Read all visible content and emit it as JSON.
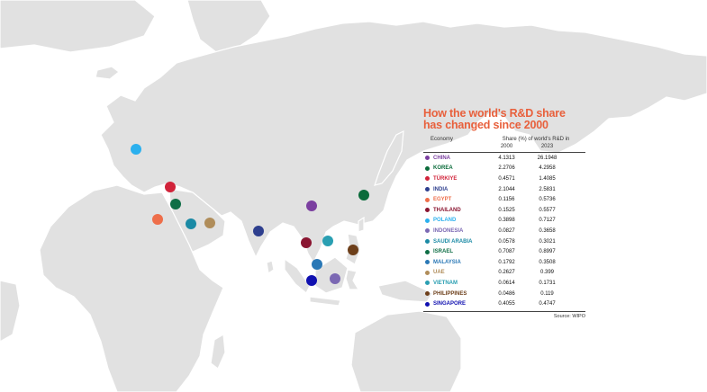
{
  "title": "How the world's R&D share has changed since 2000",
  "table": {
    "col_economy": "Economy",
    "col_share": "Share (%) of world's R&D in",
    "year_a": "2000",
    "year_b": "2023",
    "rows": [
      {
        "name": "CHINA",
        "v2000": "4.1313",
        "v2023": "26.1948",
        "color": "#7b3fa0"
      },
      {
        "name": "KOREA",
        "v2000": "2.2706",
        "v2023": "4.2958",
        "color": "#0a6b3a"
      },
      {
        "name": "TÜRKIYE",
        "v2000": "0.4571",
        "v2023": "1.4085",
        "color": "#d1233a"
      },
      {
        "name": "INDIA",
        "v2000": "2.1044",
        "v2023": "2.5831",
        "color": "#2e3f8e"
      },
      {
        "name": "EGYPT",
        "v2000": "0.1156",
        "v2023": "0.5736",
        "color": "#ee6e4a"
      },
      {
        "name": "THAILAND",
        "v2000": "0.1525",
        "v2023": "0.5577",
        "color": "#8a1531"
      },
      {
        "name": "POLAND",
        "v2000": "0.3898",
        "v2023": "0.7127",
        "color": "#2bb0ee"
      },
      {
        "name": "INDONESIA",
        "v2000": "0.0827",
        "v2023": "0.3658",
        "color": "#7b68b3"
      },
      {
        "name": "SAUDI ARABIA",
        "v2000": "0.0578",
        "v2023": "0.3021",
        "color": "#1b8aa5"
      },
      {
        "name": "ISRAEL",
        "v2000": "0.7087",
        "v2023": "0.8997",
        "color": "#0f6e46"
      },
      {
        "name": "MALAYSIA",
        "v2000": "0.1792",
        "v2023": "0.3508",
        "color": "#2a78b6"
      },
      {
        "name": "UAE",
        "v2000": "0.2627",
        "v2023": "0.399",
        "color": "#b08d5a"
      },
      {
        "name": "VIETNAM",
        "v2000": "0.0614",
        "v2023": "0.1731",
        "color": "#2a9fb2"
      },
      {
        "name": "PHILIPPINES",
        "v2000": "0.0486",
        "v2023": "0.119",
        "color": "#6d3f1a"
      },
      {
        "name": "SINGAPORE",
        "v2000": "0.4055",
        "v2023": "0.4747",
        "color": "#1010b0"
      }
    ]
  },
  "source": "Source: WIPO",
  "colors": {
    "land": "#e1e1e1",
    "title": "#e8603c"
  }
}
